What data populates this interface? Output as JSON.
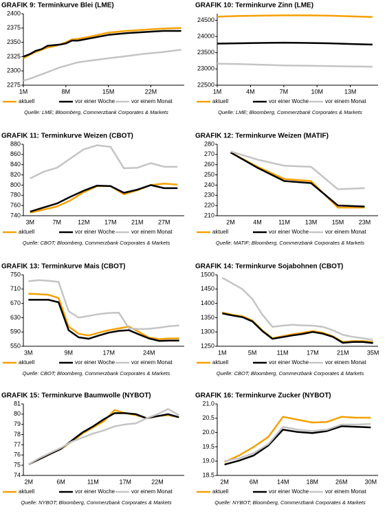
{
  "chart_data": [
    {
      "type": "line",
      "title": "GRAFIK 9: Terminkurve Blei (LME)",
      "source": "Quelle: LME; Bloomberg, Commerzbank Corporates & Markets",
      "x": [
        1,
        2,
        3,
        4,
        5,
        6,
        7,
        8,
        9,
        10,
        12,
        15,
        18,
        21,
        24,
        27
      ],
      "xlim": [
        1,
        27.5
      ],
      "xticks": [
        {
          "value": 1,
          "label": "1M"
        },
        {
          "value": 8,
          "label": "8M"
        },
        {
          "value": 15,
          "label": "15M"
        },
        {
          "value": 22,
          "label": "22M"
        }
      ],
      "ylim": [
        2275,
        2400
      ],
      "yticks": [
        2275,
        2300,
        2325,
        2350,
        2375,
        2400
      ],
      "series": [
        {
          "name": "aktuell",
          "color": "#f5a000",
          "values": [
            2322,
            2328,
            2333,
            2337,
            2341,
            2343,
            2346,
            2350,
            2355,
            2356,
            2360,
            2367,
            2370,
            2372,
            2374,
            2375
          ]
        },
        {
          "name": "vor einer Woche",
          "color": "#000000",
          "values": [
            2325,
            2329,
            2335,
            2338,
            2344,
            2345,
            2346,
            2348,
            2353,
            2353,
            2357,
            2363,
            2366,
            2368,
            2370,
            2370
          ]
        },
        {
          "name": "vor einem Monat",
          "color": "#c4c4c4",
          "values": [
            2283,
            2286,
            2290,
            2294,
            2298,
            2302,
            2306,
            2309,
            2312,
            2315,
            2318,
            2322,
            2326,
            2330,
            2333,
            2337
          ]
        }
      ]
    },
    {
      "type": "line",
      "title": "GRAFIK 10: Terminkurve Zinn (LME)",
      "source": "Quelle: LME; Bloomberg, Commerzbank Corporates & Markets",
      "x": [
        1,
        3,
        5,
        7,
        9,
        11,
        13,
        15
      ],
      "xlim": [
        1,
        15.5
      ],
      "xticks": [
        {
          "value": 1,
          "label": "1M"
        },
        {
          "value": 4,
          "label": "4M"
        },
        {
          "value": 7,
          "label": "7M"
        },
        {
          "value": 10,
          "label": "10M"
        },
        {
          "value": 13,
          "label": "13M"
        }
      ],
      "ylim": [
        22500,
        24700
      ],
      "yticks": [
        22500,
        23000,
        23500,
        24000,
        24500
      ],
      "series": [
        {
          "name": "aktuell",
          "color": "#f5a000",
          "values": [
            24610,
            24630,
            24640,
            24650,
            24650,
            24640,
            24620,
            24600
          ]
        },
        {
          "name": "vor einer Woche",
          "color": "#000000",
          "values": [
            23780,
            23790,
            23800,
            23810,
            23800,
            23790,
            23770,
            23750
          ]
        },
        {
          "name": "vor einem Monat",
          "color": "#c4c4c4",
          "values": [
            23160,
            23150,
            23130,
            23110,
            23100,
            23090,
            23080,
            23070
          ]
        }
      ]
    },
    {
      "type": "line",
      "title": "GRAFIK 11: Terminkurve Weizen (CBOT)",
      "source": "Quelle: CBOT; Bloomberg, Commerzbank Corporates & Markets",
      "categories": [
        "3M",
        null,
        "7M",
        null,
        "12M",
        null,
        "17M",
        null,
        "21M",
        null,
        "27M",
        null
      ],
      "ylim": [
        740,
        880
      ],
      "yticks": [
        740,
        760,
        780,
        800,
        820,
        840,
        860,
        880
      ],
      "series": [
        {
          "name": "aktuell",
          "color": "#f5a000",
          "values": [
            746,
            752,
            758,
            770,
            786,
            798,
            798,
            782,
            790,
            800,
            803,
            801
          ]
        },
        {
          "name": "vor einer Woche",
          "color": "#000000",
          "values": [
            748,
            756,
            764,
            777,
            789,
            799,
            798,
            785,
            791,
            800,
            794,
            794
          ]
        },
        {
          "name": "vor einem Monat",
          "color": "#c4c4c4",
          "values": [
            813,
            826,
            834,
            852,
            870,
            878,
            875,
            833,
            834,
            843,
            836,
            836
          ]
        }
      ]
    },
    {
      "type": "line",
      "title": "GRAFIK 12: Terminkurve Weizen (MATIF)",
      "source": "Quelle: MATIF; Bloomberg, Commerzbank Corporates & Markets",
      "categories": [
        "2M",
        "4M",
        "11M",
        "13M",
        "15M",
        "23M"
      ],
      "ylim": [
        210,
        280
      ],
      "yticks": [
        210,
        220,
        230,
        240,
        250,
        260,
        270,
        280
      ],
      "series": [
        {
          "name": "aktuell",
          "color": "#f5a000",
          "values": [
            272,
            258,
            246,
            244,
            218,
            218
          ]
        },
        {
          "name": "vor einer Woche",
          "color": "#000000",
          "values": [
            272,
            257,
            244,
            242,
            220,
            219
          ]
        },
        {
          "name": "vor einem Monat",
          "color": "#c4c4c4",
          "values": [
            273,
            265,
            259,
            258,
            236,
            237
          ]
        }
      ]
    },
    {
      "type": "line",
      "title": "GRAFIK 13:  Terminkurve Mais (CBOT)",
      "source": "Quelle: CBOT; Bloomberg, Commerzbank Corporates & Markets",
      "categories": [
        "3M",
        null,
        null,
        null,
        "9M",
        null,
        null,
        null,
        "17M",
        null,
        null,
        null,
        "24M",
        null,
        null,
        null
      ],
      "ylim": [
        550,
        750
      ],
      "yticks": [
        550,
        590,
        630,
        670,
        710,
        750
      ],
      "series": [
        {
          "name": "aktuell",
          "color": "#f5a000",
          "values": [
            697,
            696,
            694,
            685,
            605,
            585,
            580,
            588,
            595,
            600,
            605,
            590,
            574,
            570,
            572,
            572
          ]
        },
        {
          "name": "vor einer Woche",
          "color": "#000000",
          "values": [
            680,
            680,
            680,
            673,
            595,
            575,
            571,
            580,
            588,
            593,
            595,
            583,
            572,
            565,
            566,
            566
          ]
        },
        {
          "name": "vor einem Monat",
          "color": "#c4c4c4",
          "values": [
            732,
            735,
            733,
            730,
            648,
            630,
            635,
            640,
            643,
            644,
            600,
            598,
            599,
            602,
            606,
            608
          ]
        }
      ]
    },
    {
      "type": "line",
      "title": "GRAFIK 14: Terminkurve Sojabohnen (CBOT)",
      "source": "Quelle: CBOT; Bloomberg, Commerzbank Corporates & Markets",
      "categories": [
        "1M",
        null,
        null,
        "5M",
        null,
        null,
        "11M",
        null,
        null,
        "17M",
        null,
        null,
        "21M",
        null,
        null,
        "35M"
      ],
      "ylim": [
        1250,
        1500
      ],
      "yticks": [
        1250,
        1300,
        1350,
        1400,
        1450,
        1500
      ],
      "series": [
        {
          "name": "aktuell",
          "color": "#f5a000",
          "values": [
            1368,
            1360,
            1355,
            1340,
            1305,
            1278,
            1285,
            1292,
            1297,
            1303,
            1297,
            1285,
            1265,
            1268,
            1268,
            1265
          ]
        },
        {
          "name": "vor einer Woche",
          "color": "#000000",
          "values": [
            1365,
            1358,
            1352,
            1337,
            1303,
            1276,
            1282,
            1288,
            1293,
            1300,
            1294,
            1283,
            1262,
            1265,
            1265,
            1261
          ]
        },
        {
          "name": "vor einem Monat",
          "color": "#c4c4c4",
          "values": [
            1490,
            1470,
            1450,
            1415,
            1360,
            1318,
            1322,
            1325,
            1323,
            1322,
            1318,
            1306,
            1290,
            1283,
            1278,
            1272
          ]
        }
      ]
    },
    {
      "type": "line",
      "title": "GRAFIK 15: Terminkurve Baumwolle (NYBOT)",
      "source": "Quelle: NYBOT; Bloomberg, Commerzbank Corporates & Markets",
      "categories": [
        "2M",
        null,
        null,
        "6M",
        null,
        null,
        "11M",
        null,
        null,
        "17M",
        null,
        null,
        "22M",
        null,
        null
      ],
      "ylim": [
        74,
        81
      ],
      "yticks": [
        74,
        75,
        76,
        77,
        78,
        79,
        80,
        81
      ],
      "series": [
        {
          "name": "aktuell",
          "color": "#f5a000",
          "values": [
            75.1,
            75.6,
            76.1,
            76.6,
            77.3,
            78.1,
            78.7,
            79.3,
            80.4,
            80.1,
            79.9,
            79.6,
            79.8,
            79.9,
            79.7
          ]
        },
        {
          "name": "vor einer Woche",
          "color": "#000000",
          "values": [
            75.1,
            75.6,
            76.1,
            76.6,
            77.4,
            78.2,
            78.8,
            79.5,
            80.1,
            80.1,
            80.0,
            79.6,
            79.8,
            80.0,
            79.7
          ]
        },
        {
          "name": "vor einem Monat",
          "color": "#c4c4c4",
          "values": [
            75.1,
            75.7,
            76.2,
            76.7,
            77.3,
            77.7,
            78.1,
            78.4,
            78.8,
            79.0,
            79.1,
            79.6,
            80.0,
            80.5,
            79.9
          ]
        }
      ]
    },
    {
      "type": "line",
      "title": "GRAFIK 16: Terminkurve Zucker (NYBOT)",
      "source": "Quelle: NYBOT; Bloomberg, Commerzbank Corporates & Markets",
      "categories": [
        "2M",
        null,
        "6M",
        null,
        "14M",
        null,
        "18M",
        null,
        "26M",
        null,
        "30M"
      ],
      "ylim": [
        18.5,
        21.0
      ],
      "yticks": [
        18.5,
        {
          "value": 19.0,
          "label": "19.0"
        },
        19.5,
        {
          "value": 20.0,
          "label": "20.0"
        },
        20.5,
        {
          "value": 21.0,
          "label": "21.0"
        }
      ],
      "series": [
        {
          "name": "aktuell",
          "color": "#f5a000",
          "values": [
            18.97,
            19.2,
            19.5,
            19.85,
            20.55,
            20.45,
            20.35,
            20.37,
            20.55,
            20.52,
            20.52
          ]
        },
        {
          "name": "vor einer Woche",
          "color": "#000000",
          "values": [
            18.88,
            19.02,
            19.2,
            19.55,
            20.1,
            20.02,
            19.98,
            20.05,
            20.22,
            20.2,
            20.18
          ]
        },
        {
          "name": "vor einem Monat",
          "color": "#c4c4c4",
          "values": [
            19.0,
            19.1,
            19.28,
            19.6,
            20.2,
            20.1,
            20.05,
            20.1,
            20.28,
            20.28,
            20.3
          ]
        }
      ]
    }
  ]
}
